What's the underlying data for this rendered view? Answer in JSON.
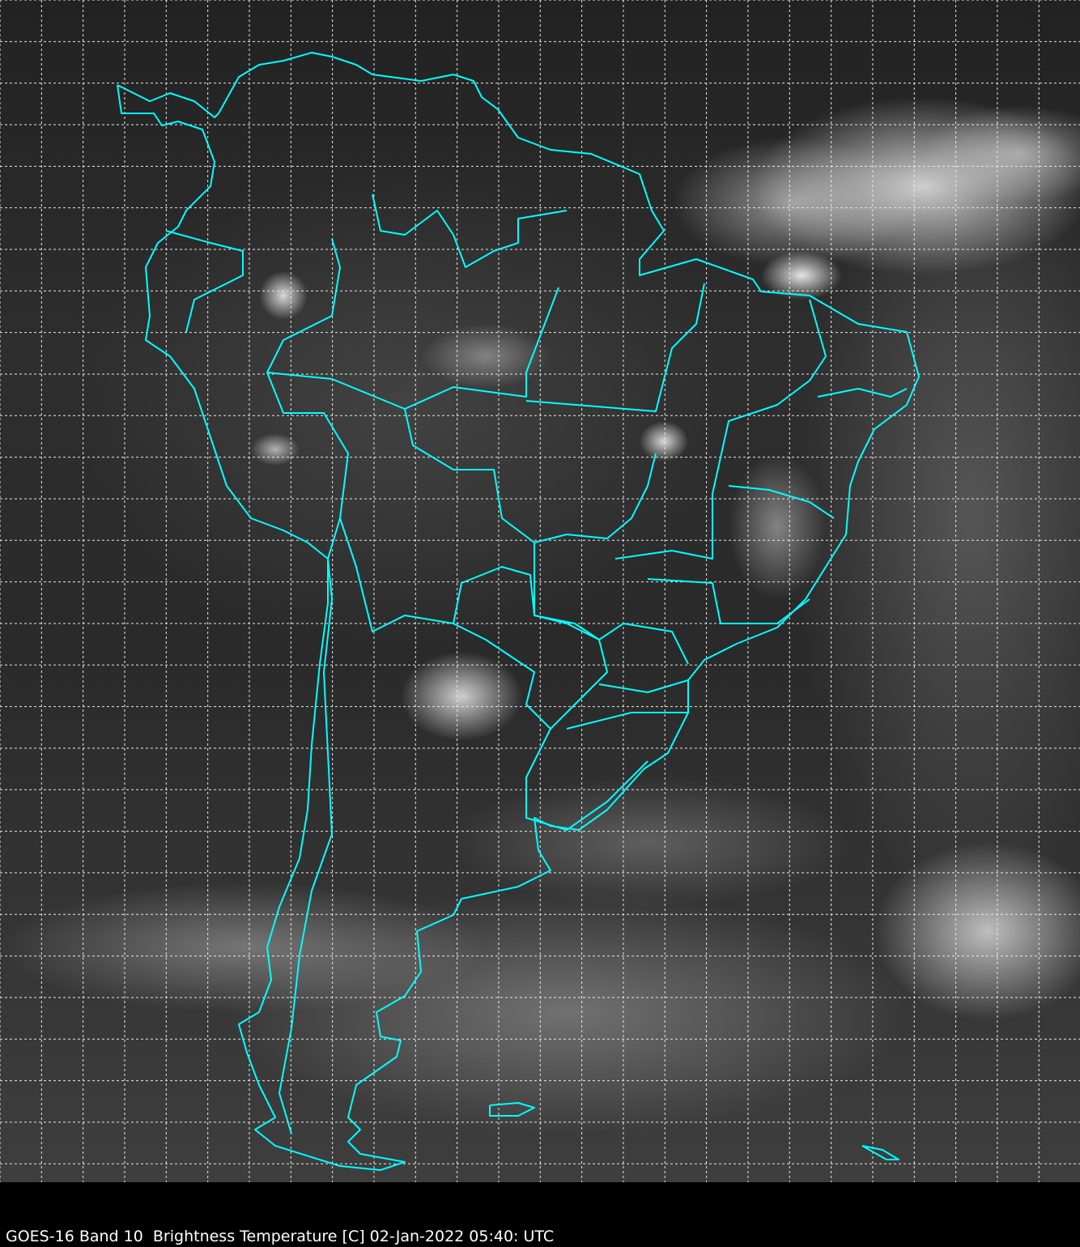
{
  "caption": "GOES-16 Band 10  Brightness Temperature [C] 02-Jan-2022 05:40: UTC",
  "colors": {
    "borders": "#00ffff",
    "grid": "#ffffff",
    "background": "#000000"
  },
  "layers": [
    "grayscale infrared imagery",
    "country and state borders",
    "lat/lon grid"
  ]
}
